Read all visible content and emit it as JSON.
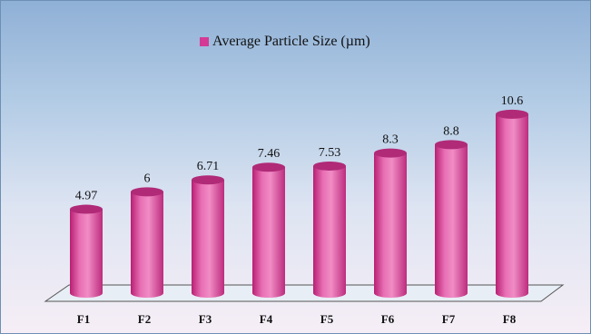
{
  "chart_data": {
    "type": "bar",
    "style": "3d-cylinder",
    "categories": [
      "F1",
      "F2",
      "F3",
      "F4",
      "F5",
      "F6",
      "F7",
      "F8"
    ],
    "series": [
      {
        "name": "Average Particle Size (µm)",
        "values": [
          4.97,
          6,
          6.71,
          7.46,
          7.53,
          8.3,
          8.8,
          10.6
        ],
        "color": "#d43a95"
      }
    ],
    "data_labels": [
      "4.97",
      "6",
      "6.71",
      "7.46",
      "7.53",
      "8.3",
      "8.8",
      "10.6"
    ],
    "legend_position": "top-center",
    "grid": false,
    "ylim": [
      0,
      12
    ]
  }
}
